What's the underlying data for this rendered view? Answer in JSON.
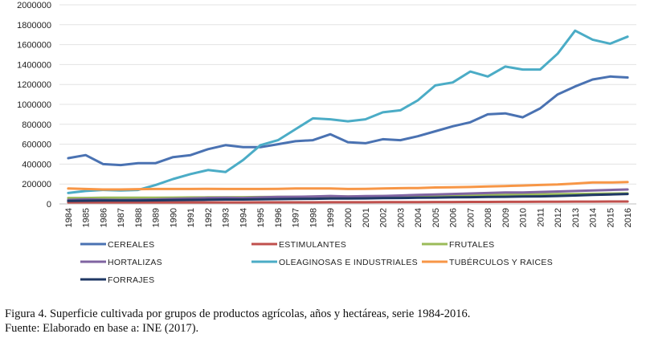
{
  "chart_data": {
    "type": "line",
    "categories": [
      "1984",
      "1985",
      "1986",
      "1987",
      "1988",
      "1989",
      "1990",
      "1991",
      "1992",
      "1993",
      "1994",
      "1995",
      "1996",
      "1997",
      "1998",
      "1999",
      "2000",
      "2001",
      "2002",
      "2003",
      "2004",
      "2005",
      "2006",
      "2007",
      "2008",
      "2009",
      "2010",
      "2011",
      "2012",
      "2013",
      "2014",
      "2015",
      "2016"
    ],
    "ylim": [
      0,
      2000000
    ],
    "yticks": [
      "0",
      "200000",
      "400000",
      "600000",
      "800000",
      "1000000",
      "1200000",
      "1400000",
      "1600000",
      "1800000",
      "2000000"
    ],
    "series": [
      {
        "name": "CEREALES",
        "color": "#4a72b2",
        "values": [
          460000,
          490000,
          400000,
          390000,
          410000,
          410000,
          470000,
          490000,
          550000,
          590000,
          570000,
          570000,
          600000,
          630000,
          640000,
          700000,
          620000,
          610000,
          650000,
          640000,
          680000,
          730000,
          780000,
          820000,
          900000,
          910000,
          870000,
          960000,
          1100000,
          1180000,
          1250000,
          1280000,
          1270000
        ]
      },
      {
        "name": "ESTIMULANTES",
        "color": "#c0504d",
        "values": [
          15000,
          15000,
          15000,
          15000,
          15000,
          15000,
          15000,
          15000,
          15000,
          15000,
          15000,
          16000,
          16000,
          16000,
          16000,
          17000,
          17000,
          17000,
          18000,
          18000,
          18000,
          19000,
          19000,
          20000,
          20000,
          21000,
          21000,
          22000,
          22000,
          23000,
          23000,
          24000,
          24000
        ]
      },
      {
        "name": "FRUTALES",
        "color": "#9bbb59",
        "values": [
          60000,
          60000,
          62000,
          62000,
          63000,
          63000,
          64000,
          65000,
          66000,
          67000,
          68000,
          69000,
          70000,
          72000,
          73000,
          74000,
          75000,
          76000,
          78000,
          80000,
          82000,
          84000,
          86000,
          88000,
          90000,
          92000,
          94000,
          96000,
          98000,
          100000,
          102000,
          104000,
          106000
        ]
      },
      {
        "name": "HORTALIZAS",
        "color": "#8064a2",
        "values": [
          40000,
          45000,
          42000,
          40000,
          42000,
          45000,
          50000,
          55000,
          60000,
          62000,
          60000,
          65000,
          70000,
          72000,
          75000,
          80000,
          75000,
          78000,
          80000,
          85000,
          90000,
          95000,
          100000,
          105000,
          110000,
          115000,
          115000,
          120000,
          125000,
          130000,
          135000,
          140000,
          145000
        ]
      },
      {
        "name": "OLEAGINOSAS E INDUSTRIALES",
        "color": "#4bacc6",
        "values": [
          110000,
          130000,
          140000,
          135000,
          140000,
          190000,
          250000,
          300000,
          340000,
          320000,
          440000,
          590000,
          640000,
          750000,
          860000,
          850000,
          830000,
          850000,
          920000,
          940000,
          1040000,
          1190000,
          1220000,
          1330000,
          1280000,
          1380000,
          1350000,
          1350000,
          1510000,
          1740000,
          1650000,
          1610000,
          1680000
        ]
      },
      {
        "name": "TUBÉRCULOS Y RAICES",
        "color": "#f79646",
        "values": [
          155000,
          150000,
          145000,
          145000,
          148000,
          150000,
          150000,
          150000,
          152000,
          150000,
          150000,
          150000,
          152000,
          155000,
          155000,
          155000,
          150000,
          152000,
          155000,
          158000,
          160000,
          165000,
          168000,
          170000,
          175000,
          180000,
          185000,
          190000,
          195000,
          205000,
          215000,
          215000,
          220000
        ]
      },
      {
        "name": "FORRAJES",
        "color": "#1f3864",
        "values": [
          30000,
          32000,
          34000,
          34000,
          35000,
          36000,
          38000,
          40000,
          42000,
          44000,
          44000,
          46000,
          48000,
          50000,
          52000,
          54000,
          54000,
          56000,
          58000,
          60000,
          62000,
          64000,
          66000,
          68000,
          70000,
          72000,
          74000,
          76000,
          80000,
          85000,
          90000,
          95000,
          100000
        ]
      }
    ]
  },
  "caption": {
    "line1": "Figura 4.  Superficie cultivada por grupos de productos agrícolas, años y hectáreas, serie 1984-2016.",
    "line2": "Fuente:  Elaborado en base a: INE (2017)."
  }
}
